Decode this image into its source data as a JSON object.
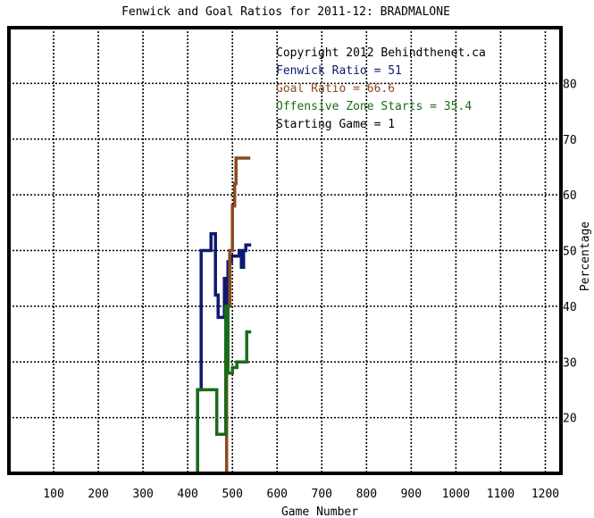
{
  "chart_data": {
    "type": "line",
    "title": "Fenwick and Goal Ratios for 2011-12: BRADMALONE",
    "xlabel": "Game Number",
    "ylabel": "Percentage",
    "xlim": [
      0,
      1235
    ],
    "ylim": [
      10,
      90
    ],
    "xticks": [
      100,
      200,
      300,
      400,
      500,
      600,
      700,
      800,
      900,
      1000,
      1100,
      1200
    ],
    "yticks": [
      20,
      30,
      40,
      50,
      60,
      70,
      80
    ],
    "grid": true,
    "info": {
      "copyright": "Copyright 2012 Behindthenet.ca",
      "fenwick_line": "Fenwick Ratio = 51",
      "goal_line": "Goal Ratio = 66.6",
      "ozs_line": "Offensive Zone Starts = 35.4",
      "start_line": "Starting Game = 1"
    },
    "colors": {
      "fenwick": "#0d1a6e",
      "goal": "#8b4a1e",
      "ozs": "#1a6b1a"
    },
    "series": [
      {
        "key": "fenwick",
        "name": "Fenwick Ratio",
        "x": [
          422,
          422,
          430,
          430,
          442,
          442,
          452,
          452,
          460,
          460,
          462,
          462,
          468,
          468,
          475,
          475,
          482,
          482,
          485,
          485,
          490,
          490,
          498,
          498,
          508,
          508,
          515,
          515,
          520,
          520,
          525,
          525,
          530,
          530,
          535,
          535,
          542
        ],
        "y": [
          10,
          25,
          25,
          50,
          50,
          50,
          50,
          53,
          53,
          53,
          53,
          42,
          42,
          38,
          38,
          38,
          38,
          45,
          45,
          40,
          40,
          48,
          48,
          49,
          49,
          49,
          49,
          50,
          50,
          47,
          47,
          50,
          50,
          51,
          51,
          51,
          51
        ]
      },
      {
        "key": "goal",
        "name": "Goal Ratio",
        "x": [
          487,
          487,
          494,
          494,
          500,
          500,
          505,
          505,
          508,
          508,
          512,
          512,
          540
        ],
        "y": [
          10,
          40,
          40,
          50,
          50,
          58,
          58,
          62,
          62,
          66.6,
          66.6,
          66.6,
          66.6
        ]
      },
      {
        "key": "ozs",
        "name": "Offensive Zone Starts",
        "x": [
          422,
          422,
          430,
          430,
          448,
          448,
          465,
          465,
          478,
          478,
          485,
          485,
          490,
          490,
          500,
          500,
          510,
          510,
          520,
          520,
          532,
          532,
          542
        ],
        "y": [
          10,
          25,
          25,
          25,
          25,
          25,
          25,
          17,
          17,
          17,
          17,
          40,
          40,
          28,
          28,
          29,
          29,
          30,
          30,
          30,
          30,
          35.4,
          35.4
        ]
      }
    ]
  }
}
